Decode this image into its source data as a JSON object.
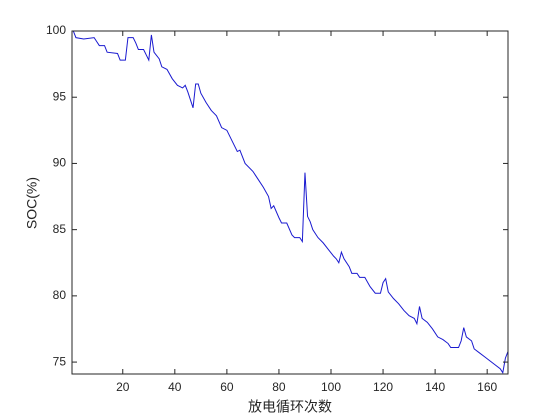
{
  "chart_data": {
    "type": "line",
    "x_label": "放电循环次数",
    "y_label": "SOC(%)",
    "xlim": [
      0.5,
      168
    ],
    "ylim": [
      74.1,
      100
    ],
    "xticks": [
      20,
      40,
      60,
      80,
      100,
      120,
      140,
      160
    ],
    "yticks": [
      75,
      80,
      85,
      90,
      95,
      100
    ],
    "x": [
      1,
      2,
      5,
      9,
      10,
      11,
      13,
      14,
      18,
      19,
      21,
      22,
      24,
      25,
      26,
      28,
      29,
      30,
      31,
      32,
      34,
      35,
      37,
      39,
      41,
      43,
      44,
      45,
      47,
      48,
      49,
      50,
      52,
      54,
      56,
      58,
      60,
      62,
      64,
      65,
      67,
      70,
      72,
      74,
      76,
      77,
      78,
      80,
      81,
      83,
      85,
      86,
      88,
      89,
      90,
      91,
      92,
      93,
      95,
      97,
      99,
      101,
      102,
      103,
      104,
      105,
      107,
      108,
      110,
      111,
      113,
      115,
      117,
      119,
      120,
      121,
      122,
      124,
      126,
      128,
      130,
      132,
      133,
      134,
      135,
      137,
      139,
      141,
      143,
      145,
      146,
      149,
      150,
      151,
      152,
      154,
      155,
      157,
      159,
      161,
      163,
      165,
      166,
      167,
      168
    ],
    "series": [
      {
        "color": "#1a1ad0",
        "values": [
          100,
          99.5,
          99.4,
          99.5,
          99.2,
          98.9,
          98.9,
          98.4,
          98.3,
          97.8,
          97.8,
          99.5,
          99.5,
          99.1,
          98.6,
          98.6,
          98.2,
          97.8,
          99.7,
          98.4,
          97.9,
          97.3,
          97.1,
          96.4,
          95.9,
          95.7,
          95.9,
          95.4,
          94.2,
          96,
          96,
          95.3,
          94.6,
          94,
          93.6,
          92.7,
          92.5,
          91.7,
          90.9,
          91,
          90,
          89.4,
          88.8,
          88.2,
          87.5,
          86.6,
          86.8,
          85.9,
          85.5,
          85.5,
          84.6,
          84.4,
          84.4,
          84.1,
          89.3,
          86,
          85.6,
          85,
          84.4,
          84,
          83.5,
          83,
          82.8,
          82.5,
          83.3,
          82.8,
          82.2,
          81.7,
          81.7,
          81.4,
          81.4,
          80.7,
          80.2,
          80.2,
          81,
          81.3,
          80.3,
          79.8,
          79.4,
          78.9,
          78.5,
          78.3,
          77.9,
          79.2,
          78.3,
          78,
          77.5,
          76.9,
          76.7,
          76.4,
          76.1,
          76.1,
          76.6,
          77.6,
          76.9,
          76.6,
          76,
          75.7,
          75.4,
          75.1,
          74.8,
          74.5,
          74.2,
          75.3,
          75.8
        ]
      }
    ]
  }
}
